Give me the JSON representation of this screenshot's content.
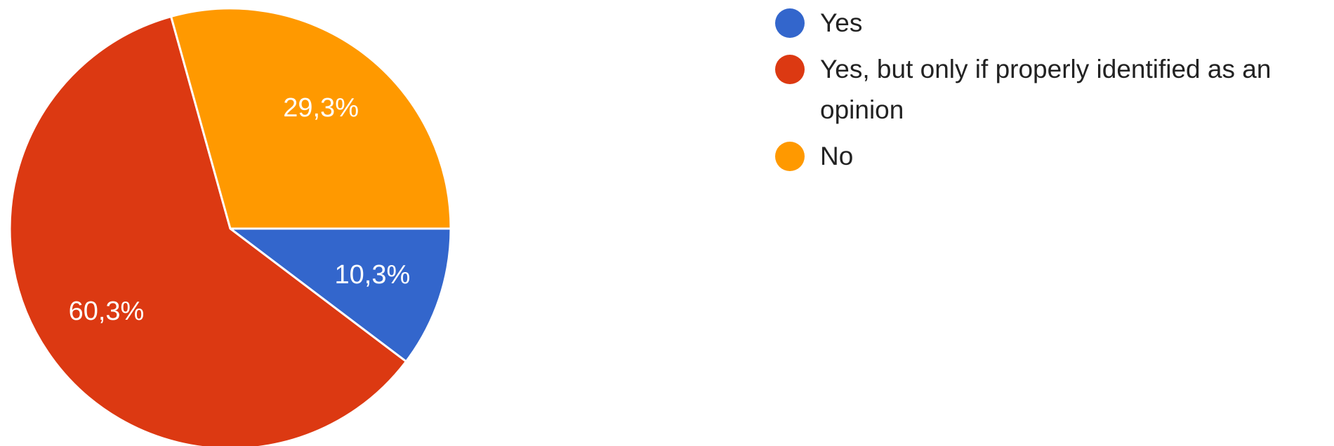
{
  "chart_data": {
    "type": "pie",
    "title": "",
    "legend_position": "right",
    "slices": [
      {
        "label": "Yes",
        "value": 10.3,
        "display": "10,3%",
        "color": "#3366cc"
      },
      {
        "label": "Yes, but only if properly identified as an opinion",
        "value": 60.3,
        "display": "60,3%",
        "color": "#dc3912"
      },
      {
        "label": "No",
        "value": 29.3,
        "display": "29,3%",
        "color": "#ff9900"
      }
    ]
  }
}
